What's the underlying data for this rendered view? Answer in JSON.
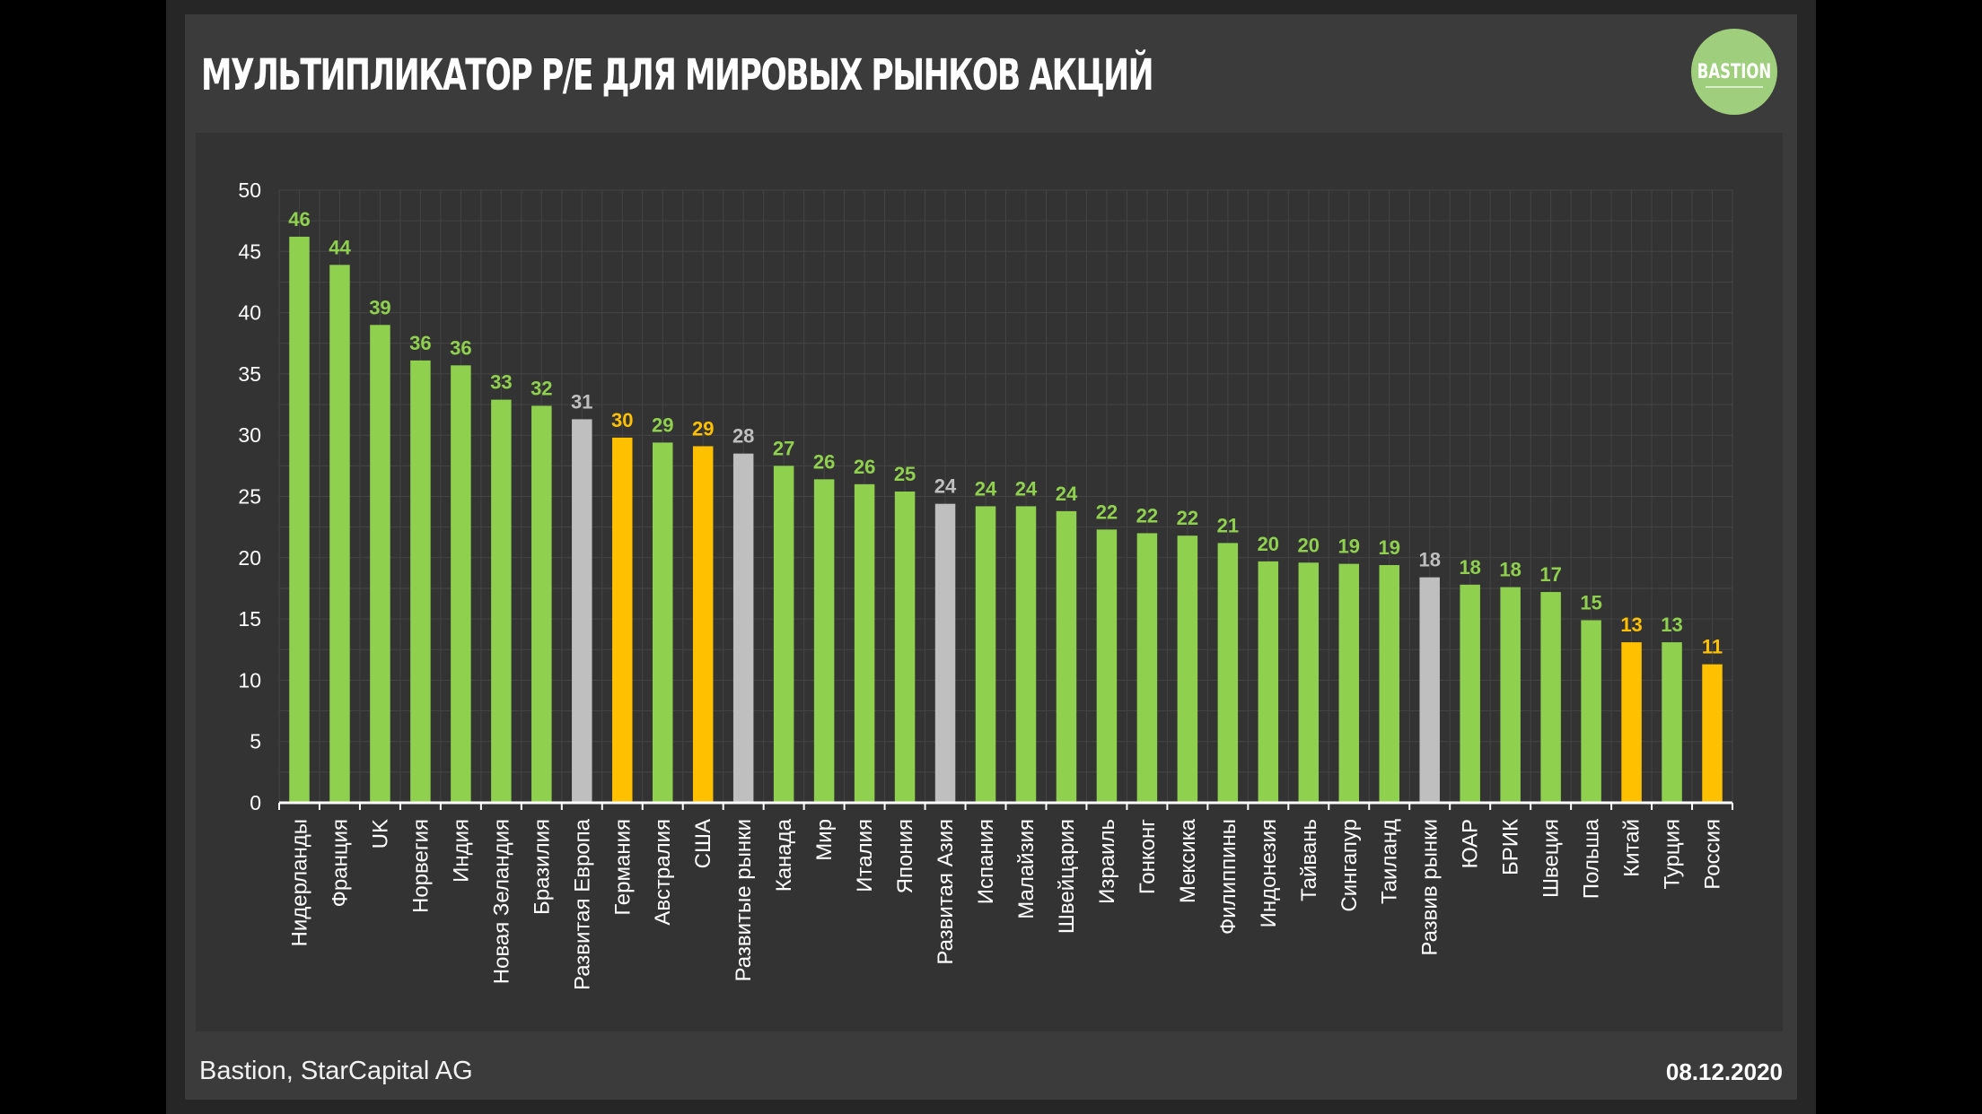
{
  "header": {
    "title": "МУЛЬТИПЛИКАТОР P/E ДЛЯ МИРОВЫХ РЫНКОВ АКЦИЙ",
    "logo_text": "BASTION"
  },
  "footer": {
    "source": "Bastion, StarCapital AG",
    "date": "08.12.2020"
  },
  "colors": {
    "background": "#3b3b3b",
    "plot_area": "#333333",
    "green": "#8fd14f",
    "gray": "#bfbfbf",
    "orange": "#ffc000",
    "logo": "#9fcf7c"
  },
  "chart_data": {
    "type": "bar",
    "title": "",
    "xlabel": "",
    "ylabel": "",
    "ylim": [
      0,
      50
    ],
    "yticks": [
      0,
      5,
      10,
      15,
      20,
      25,
      30,
      35,
      40,
      45,
      50
    ],
    "grid": true,
    "categories": [
      "Нидерланды",
      "Франция",
      "UK",
      "Норвегия",
      "Индия",
      "Новая Зеландия",
      "Бразилия",
      "Развитая Европа",
      "Германия",
      "Австралия",
      "США",
      "Развитые рынки",
      "Канада",
      "Мир",
      "Италия",
      "Япония",
      "Развитая Азия",
      "Испания",
      "Малайзия",
      "Швейцария",
      "Израиль",
      "Гонконг",
      "Мексика",
      "Филиппины",
      "Индонезия",
      "Тайвань",
      "Сингапур",
      "Таиланд",
      "Развив рынки",
      "ЮАР",
      "БРИК",
      "Швеция",
      "Польша",
      "Китай",
      "Турция",
      "Россия"
    ],
    "values": [
      46.2,
      43.9,
      39.0,
      36.1,
      35.7,
      32.9,
      32.4,
      31.3,
      29.8,
      29.4,
      29.1,
      28.5,
      27.5,
      26.4,
      26.0,
      25.4,
      24.4,
      24.2,
      24.2,
      23.8,
      22.3,
      22.0,
      21.8,
      21.2,
      19.7,
      19.6,
      19.5,
      19.4,
      18.4,
      17.8,
      17.6,
      17.2,
      14.9,
      13.1,
      13.1,
      11.3
    ],
    "value_labels": [
      "46",
      "44",
      "39",
      "36",
      "36",
      "33",
      "32",
      "31",
      "30",
      "29",
      "29",
      "28",
      "27",
      "26",
      "26",
      "25",
      "24",
      "24",
      "24",
      "24",
      "22",
      "22",
      "22",
      "21",
      "20",
      "20",
      "19",
      "19",
      "18",
      "18",
      "18",
      "17",
      "15",
      "13",
      "13",
      "11"
    ],
    "bar_colors": [
      "green",
      "green",
      "green",
      "green",
      "green",
      "green",
      "green",
      "gray",
      "orange",
      "green",
      "orange",
      "gray",
      "green",
      "green",
      "green",
      "green",
      "gray",
      "green",
      "green",
      "green",
      "green",
      "green",
      "green",
      "green",
      "green",
      "green",
      "green",
      "green",
      "gray",
      "green",
      "green",
      "green",
      "green",
      "orange",
      "green",
      "orange"
    ]
  }
}
